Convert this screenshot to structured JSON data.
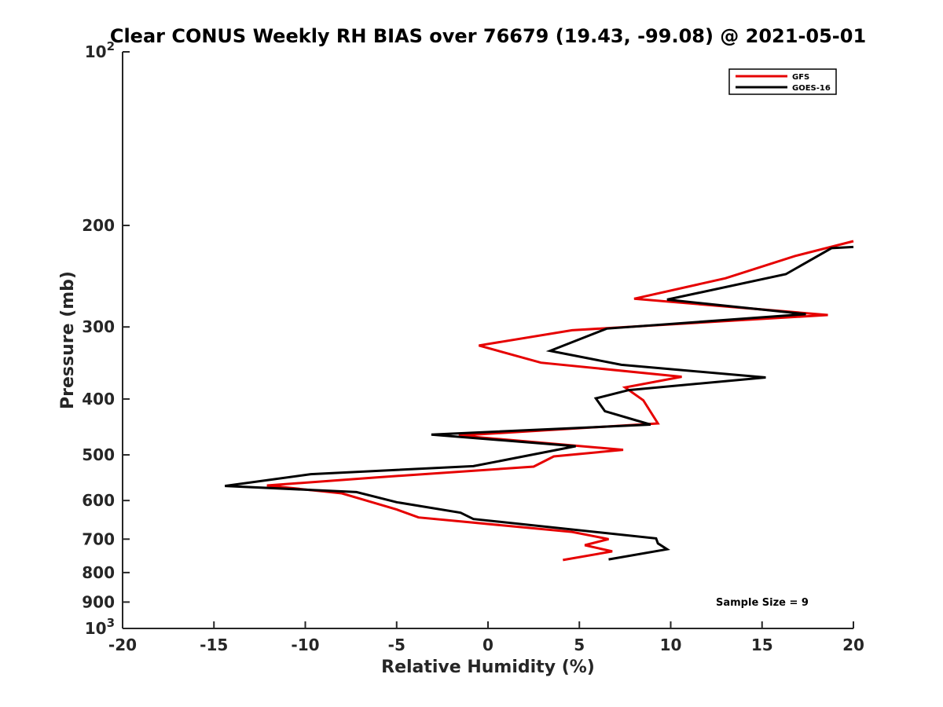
{
  "chart_data": {
    "type": "line",
    "title": "Clear CONUS Weekly RH BIAS over 76679 (19.43, -99.08) @ 2021-05-01",
    "xlabel": "Relative Humidity (%)",
    "ylabel": "Pressure (mb)",
    "xlim": [
      -20,
      20
    ],
    "ylim": [
      100,
      1000
    ],
    "y_scale": "log",
    "y_reversed": true,
    "grid": false,
    "legend_position": "top-right",
    "x_ticks": [
      "-20",
      "-15",
      "-10",
      "-5",
      "0",
      "5",
      "10",
      "15",
      "20"
    ],
    "y_ticks": [
      {
        "value": 100,
        "base": "10",
        "exp": "2"
      },
      {
        "value": 200,
        "label": "200"
      },
      {
        "value": 300,
        "label": "300"
      },
      {
        "value": 400,
        "label": "400"
      },
      {
        "value": 500,
        "label": "500"
      },
      {
        "value": 600,
        "label": "600"
      },
      {
        "value": 700,
        "label": "700"
      },
      {
        "value": 800,
        "label": "800"
      },
      {
        "value": 900,
        "label": "900"
      },
      {
        "value": 1000,
        "base": "10",
        "exp": "3"
      }
    ],
    "series": [
      {
        "name": "GFS",
        "color": "#e60000",
        "points": [
          [
            20.0,
            213
          ],
          [
            16.8,
            226
          ],
          [
            13.0,
            247
          ],
          [
            8.0,
            268
          ],
          [
            18.6,
            286
          ],
          [
            4.6,
            304
          ],
          [
            -0.5,
            323
          ],
          [
            2.9,
            346
          ],
          [
            10.6,
            366
          ],
          [
            7.5,
            382
          ],
          [
            8.5,
            402
          ],
          [
            9.3,
            441
          ],
          [
            -1.6,
            463
          ],
          [
            7.4,
            490
          ],
          [
            3.6,
            503
          ],
          [
            2.5,
            524
          ],
          [
            -6.1,
            547
          ],
          [
            -12.1,
            565
          ],
          [
            -8.0,
            583
          ],
          [
            -5.0,
            622
          ],
          [
            -3.8,
            642
          ],
          [
            4.6,
            680
          ],
          [
            6.6,
            700
          ],
          [
            5.3,
            717
          ],
          [
            6.8,
            735
          ],
          [
            4.1,
            761
          ]
        ]
      },
      {
        "name": "GOES-16",
        "color": "#000000",
        "points": [
          [
            20.0,
            218
          ],
          [
            18.8,
            219
          ],
          [
            16.3,
            243
          ],
          [
            9.8,
            269
          ],
          [
            17.4,
            285
          ],
          [
            6.5,
            302
          ],
          [
            3.4,
            330
          ],
          [
            7.3,
            349
          ],
          [
            15.2,
            367
          ],
          [
            7.7,
            386
          ],
          [
            5.9,
            399
          ],
          [
            6.4,
            420
          ],
          [
            8.9,
            443
          ],
          [
            -3.1,
            461
          ],
          [
            4.8,
            483
          ],
          [
            -0.8,
            523
          ],
          [
            -9.7,
            540
          ],
          [
            -14.4,
            566
          ],
          [
            -7.2,
            580
          ],
          [
            -5.0,
            604
          ],
          [
            -1.5,
            630
          ],
          [
            -0.8,
            646
          ],
          [
            9.2,
            698
          ],
          [
            9.3,
            712
          ],
          [
            9.8,
            729
          ],
          [
            6.6,
            759
          ]
        ]
      }
    ],
    "annotation": "Sample Size = 9"
  }
}
